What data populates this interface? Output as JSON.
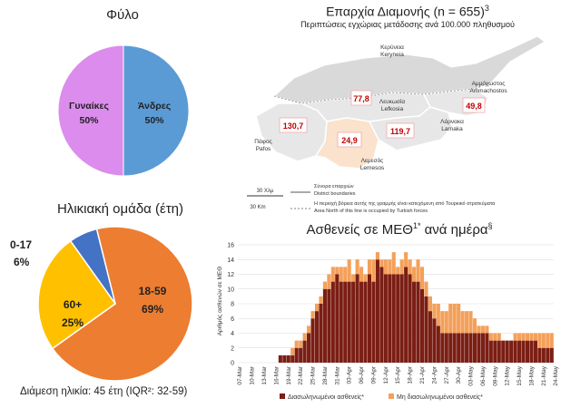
{
  "gender": {
    "title": "Φύλο",
    "female_label": "Γυναίκες",
    "female_pct": "50%",
    "male_label": "Άνδρες",
    "male_pct": "50%",
    "colors": {
      "female": "#DB8CEC",
      "male": "#5B9BD5"
    }
  },
  "age": {
    "title": "Ηλικιακή ομάδα (έτη)",
    "groups": [
      {
        "label": "0-17",
        "pct": "6%",
        "value": 6,
        "color": "#4472C4"
      },
      {
        "label": "18-59",
        "pct": "69%",
        "value": 69,
        "color": "#ED7D31"
      },
      {
        "label": "60+",
        "pct": "25%",
        "value": 25,
        "color": "#FFC000"
      }
    ],
    "median_note": "Διάμεση ηλικία: 45 έτη (IQR²: 32-59)"
  },
  "map": {
    "title": "Επαρχία Διαμονής (n = 655)",
    "title_sup": "3",
    "subtitle": "Περιπτώσεις εγχώριας μετάδοσης ανά 100.000 πληθυσμού",
    "districts": [
      {
        "gr": "Κερύνεια",
        "en": "Keryneia"
      },
      {
        "gr": "Λευκωσία",
        "en": "Lefkosia",
        "value": "77,8"
      },
      {
        "gr": "Αμμόχωστος",
        "en": "Ammachostos",
        "value": "49,8"
      },
      {
        "gr": "Λάρνακα",
        "en": "Larnaka",
        "value": "119,7"
      },
      {
        "gr": "Λεμεσός",
        "en": "Lemesos",
        "value": "24,9"
      },
      {
        "gr": "Πάφος",
        "en": "Pafos",
        "value": "130,7"
      }
    ],
    "scale_gr": "30 Χλμ",
    "scale_en": "30 Km",
    "legend_boundary_gr": "Σύνορα επαρχιών",
    "legend_boundary_en": "District boundaries",
    "legend_north_gr": "Η περιοχή βόρεια αυτής της γραμμής είναι κατεχόμενη από Τουρκικό στρατεύματα",
    "legend_north_en": "Area North of this line is occupied by Turkish forces"
  },
  "icu": {
    "title": "Ασθενείς σε ΜΕΘ",
    "title_sup": "1*",
    "title_rest": " ανά ημέρα",
    "title_sup2": "§",
    "ylabel": "Αριθμός ασθενών σε ΜΕΘ",
    "legend_dx": "Διασωληνωμένοι ασθενείς*",
    "legend_non": "Μη διασωληνωμένοι ασθενείς*"
  },
  "chart_data": {
    "type": "bar",
    "stacked": true,
    "title": "Ασθενείς σε ΜΕΘ1* ανά ημέρα§",
    "ylabel": "Αριθμός ασθενών σε ΜΕΘ",
    "ylim": [
      0,
      16
    ],
    "yticks": [
      0,
      2,
      4,
      6,
      8,
      10,
      12,
      14,
      16
    ],
    "grid": true,
    "legend": "bottom",
    "tick_labels": [
      "07-Mar",
      "10-Mar",
      "13-Mar",
      "16-Mar",
      "19-Mar",
      "22-Mar",
      "25-Mar",
      "28-Mar",
      "31-Mar",
      "03-Apr",
      "06-Apr",
      "09-Apr",
      "12-Apr",
      "15-Apr",
      "18-Apr",
      "21-Apr",
      "24-Apr",
      "27-Apr",
      "30-Apr",
      "03-May",
      "06-May",
      "09-May",
      "12-May",
      "15-May",
      "18-May",
      "21-May",
      "24-May"
    ],
    "series": [
      {
        "name": "Διασωληνωμένοι ασθενείς*",
        "color": "#7B1E14",
        "values": [
          0,
          0,
          0,
          0,
          0,
          0,
          0,
          0,
          0,
          0,
          1,
          1,
          1,
          1,
          2,
          2,
          3,
          4,
          6,
          7,
          8,
          10,
          10,
          11,
          12,
          11,
          11,
          11,
          11,
          12,
          11,
          11,
          12,
          11,
          14,
          13,
          12,
          12,
          12,
          12,
          12,
          13,
          12,
          11,
          11,
          10,
          9,
          7,
          6,
          5,
          4,
          4,
          4,
          4,
          4,
          4,
          4,
          4,
          4,
          4,
          4,
          4,
          3,
          3,
          3,
          3,
          3,
          3,
          3,
          3,
          3,
          3,
          3,
          3,
          2,
          2,
          2,
          2
        ]
      },
      {
        "name": "Μη διασωληνωμένοι ασθενείς*",
        "color": "#F4A05A",
        "values": [
          0,
          0,
          0,
          0,
          0,
          0,
          0,
          0,
          0,
          0,
          0,
          0,
          0,
          1,
          1,
          1,
          1,
          1,
          1,
          1,
          1,
          1,
          2,
          2,
          1,
          2,
          2,
          3,
          1,
          2,
          2,
          1,
          2,
          3,
          1,
          1,
          2,
          2,
          3,
          1,
          2,
          2,
          2,
          2,
          3,
          3,
          2,
          2,
          2,
          3,
          3,
          3,
          4,
          4,
          4,
          3,
          3,
          3,
          2,
          1,
          1,
          1,
          1,
          1,
          1,
          0,
          0,
          0,
          1,
          1,
          1,
          1,
          1,
          1,
          2,
          2,
          2,
          2
        ]
      }
    ]
  }
}
